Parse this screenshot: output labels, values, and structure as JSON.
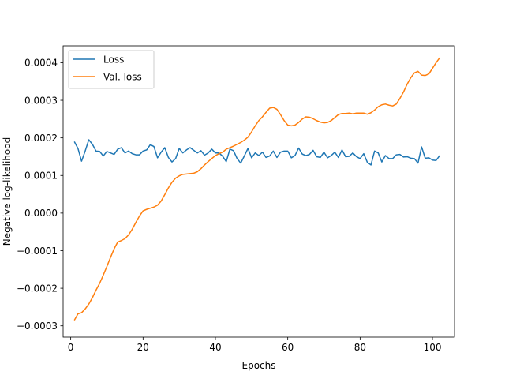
{
  "chart_data": {
    "type": "line",
    "xlabel": "Epochs",
    "ylabel": "Negative log-likelihood",
    "xlim": [
      -2.1,
      106.1
    ],
    "ylim": [
      -0.00033,
      0.000445
    ],
    "xticks": [
      0,
      20,
      40,
      60,
      80,
      100
    ],
    "yticks": [
      -0.0003,
      -0.0002,
      -0.0001,
      0.0,
      0.0001,
      0.0002,
      0.0003,
      0.0004
    ],
    "ytick_labels": [
      "−0.0003",
      "−0.0002",
      "−0.0001",
      "0.0000",
      "0.0001",
      "0.0002",
      "0.0003",
      "0.0004"
    ],
    "legend_position": "upper-left",
    "series": [
      {
        "name": "Loss",
        "color": "#1f77b4",
        "x": [
          1,
          2,
          3,
          4,
          5,
          6,
          7,
          8,
          9,
          10,
          11,
          12,
          13,
          14,
          15,
          16,
          17,
          18,
          19,
          20,
          21,
          22,
          23,
          24,
          25,
          26,
          27,
          28,
          29,
          30,
          31,
          32,
          33,
          34,
          35,
          36,
          37,
          38,
          39,
          40,
          41,
          42,
          43,
          44,
          45,
          46,
          47,
          48,
          49,
          50,
          51,
          52,
          53,
          54,
          55,
          56,
          57,
          58,
          59,
          60,
          61,
          62,
          63,
          64,
          65,
          66,
          67,
          68,
          69,
          70,
          71,
          72,
          73,
          74,
          75,
          76,
          77,
          78,
          79,
          80,
          81,
          82,
          83,
          84,
          85,
          86,
          87,
          88,
          89,
          90,
          91,
          92,
          93,
          94,
          95,
          96,
          97,
          98,
          99,
          100,
          101,
          102
        ],
        "y": [
          0.00019,
          0.000172,
          0.000138,
          0.000165,
          0.000195,
          0.000183,
          0.000165,
          0.000164,
          0.000152,
          0.000164,
          0.00016,
          0.000156,
          0.00017,
          0.000174,
          0.00016,
          0.000165,
          0.000158,
          0.000155,
          0.000155,
          0.000165,
          0.000168,
          0.000182,
          0.000177,
          0.000147,
          0.000162,
          0.000174,
          0.000148,
          0.000136,
          0.000145,
          0.000172,
          0.00016,
          0.000168,
          0.000174,
          0.000167,
          0.00016,
          0.000166,
          0.000154,
          0.00016,
          0.00017,
          0.00016,
          0.00016,
          0.000151,
          0.000137,
          0.00017,
          0.000166,
          0.000145,
          0.000133,
          0.000152,
          0.000172,
          0.000147,
          0.00016,
          0.000153,
          0.000162,
          0.000148,
          0.000152,
          0.000165,
          0.000148,
          0.000162,
          0.000165,
          0.000165,
          0.000147,
          0.000153,
          0.000173,
          0.000157,
          0.000153,
          0.000156,
          0.000167,
          0.00015,
          0.000148,
          0.000162,
          0.000147,
          0.000153,
          0.000162,
          0.000148,
          0.000168,
          0.00015,
          0.000151,
          0.00016,
          0.00015,
          0.000145,
          0.000158,
          0.000135,
          0.000128,
          0.000165,
          0.00016,
          0.000136,
          0.000153,
          0.000145,
          0.000145,
          0.000155,
          0.000156,
          0.000149,
          0.00015,
          0.000146,
          0.000145,
          0.000133,
          0.000176,
          0.000146,
          0.000147,
          0.000141,
          0.00014,
          0.000153
        ]
      },
      {
        "name": "Val. loss",
        "color": "#ff7f0e",
        "x": [
          1,
          2,
          3,
          4,
          5,
          6,
          7,
          8,
          9,
          10,
          11,
          12,
          13,
          14,
          15,
          16,
          17,
          18,
          19,
          20,
          21,
          22,
          23,
          24,
          25,
          26,
          27,
          28,
          29,
          30,
          31,
          32,
          33,
          34,
          35,
          36,
          37,
          38,
          39,
          40,
          41,
          42,
          43,
          44,
          45,
          46,
          47,
          48,
          49,
          50,
          51,
          52,
          53,
          54,
          55,
          56,
          57,
          58,
          59,
          60,
          61,
          62,
          63,
          64,
          65,
          66,
          67,
          68,
          69,
          70,
          71,
          72,
          73,
          74,
          75,
          76,
          77,
          78,
          79,
          80,
          81,
          82,
          83,
          84,
          85,
          86,
          87,
          88,
          89,
          90,
          91,
          92,
          93,
          94,
          95,
          96,
          97,
          98,
          99,
          100,
          101,
          102
        ],
        "y": [
          -0.000285,
          -0.000268,
          -0.000265,
          -0.000255,
          -0.000242,
          -0.000225,
          -0.000205,
          -0.000187,
          -0.000165,
          -0.000142,
          -0.000118,
          -9.5e-05,
          -7.7e-05,
          -7.3e-05,
          -6.8e-05,
          -5.8e-05,
          -4.3e-05,
          -2.5e-05,
          -8e-06,
          6e-06,
          1e-05,
          1.3e-05,
          1.6e-05,
          2.1e-05,
          3.2e-05,
          4.9e-05,
          6.7e-05,
          8.2e-05,
          9.3e-05,
          9.9e-05,
          0.000103,
          0.000104,
          0.000105,
          0.000106,
          0.00011,
          0.000118,
          0.000128,
          0.000137,
          0.000145,
          0.000153,
          0.000158,
          0.000162,
          0.00017,
          0.000174,
          0.000178,
          0.000183,
          0.000188,
          0.000194,
          0.000202,
          0.000216,
          0.000232,
          0.000246,
          0.000256,
          0.000268,
          0.000279,
          0.000281,
          0.000276,
          0.000262,
          0.000246,
          0.000234,
          0.000232,
          0.000234,
          0.000241,
          0.00025,
          0.000256,
          0.000255,
          0.000251,
          0.000246,
          0.000242,
          0.00024,
          0.000241,
          0.000246,
          0.000254,
          0.000262,
          0.000265,
          0.000265,
          0.000266,
          0.000264,
          0.000266,
          0.000266,
          0.000266,
          0.000263,
          0.000267,
          0.000274,
          0.000283,
          0.000288,
          0.00029,
          0.000287,
          0.000285,
          0.00029,
          0.000305,
          0.000322,
          0.000343,
          0.00036,
          0.000373,
          0.000377,
          0.000367,
          0.000366,
          0.00037,
          0.000385,
          0.0004,
          0.000413
        ]
      }
    ]
  }
}
